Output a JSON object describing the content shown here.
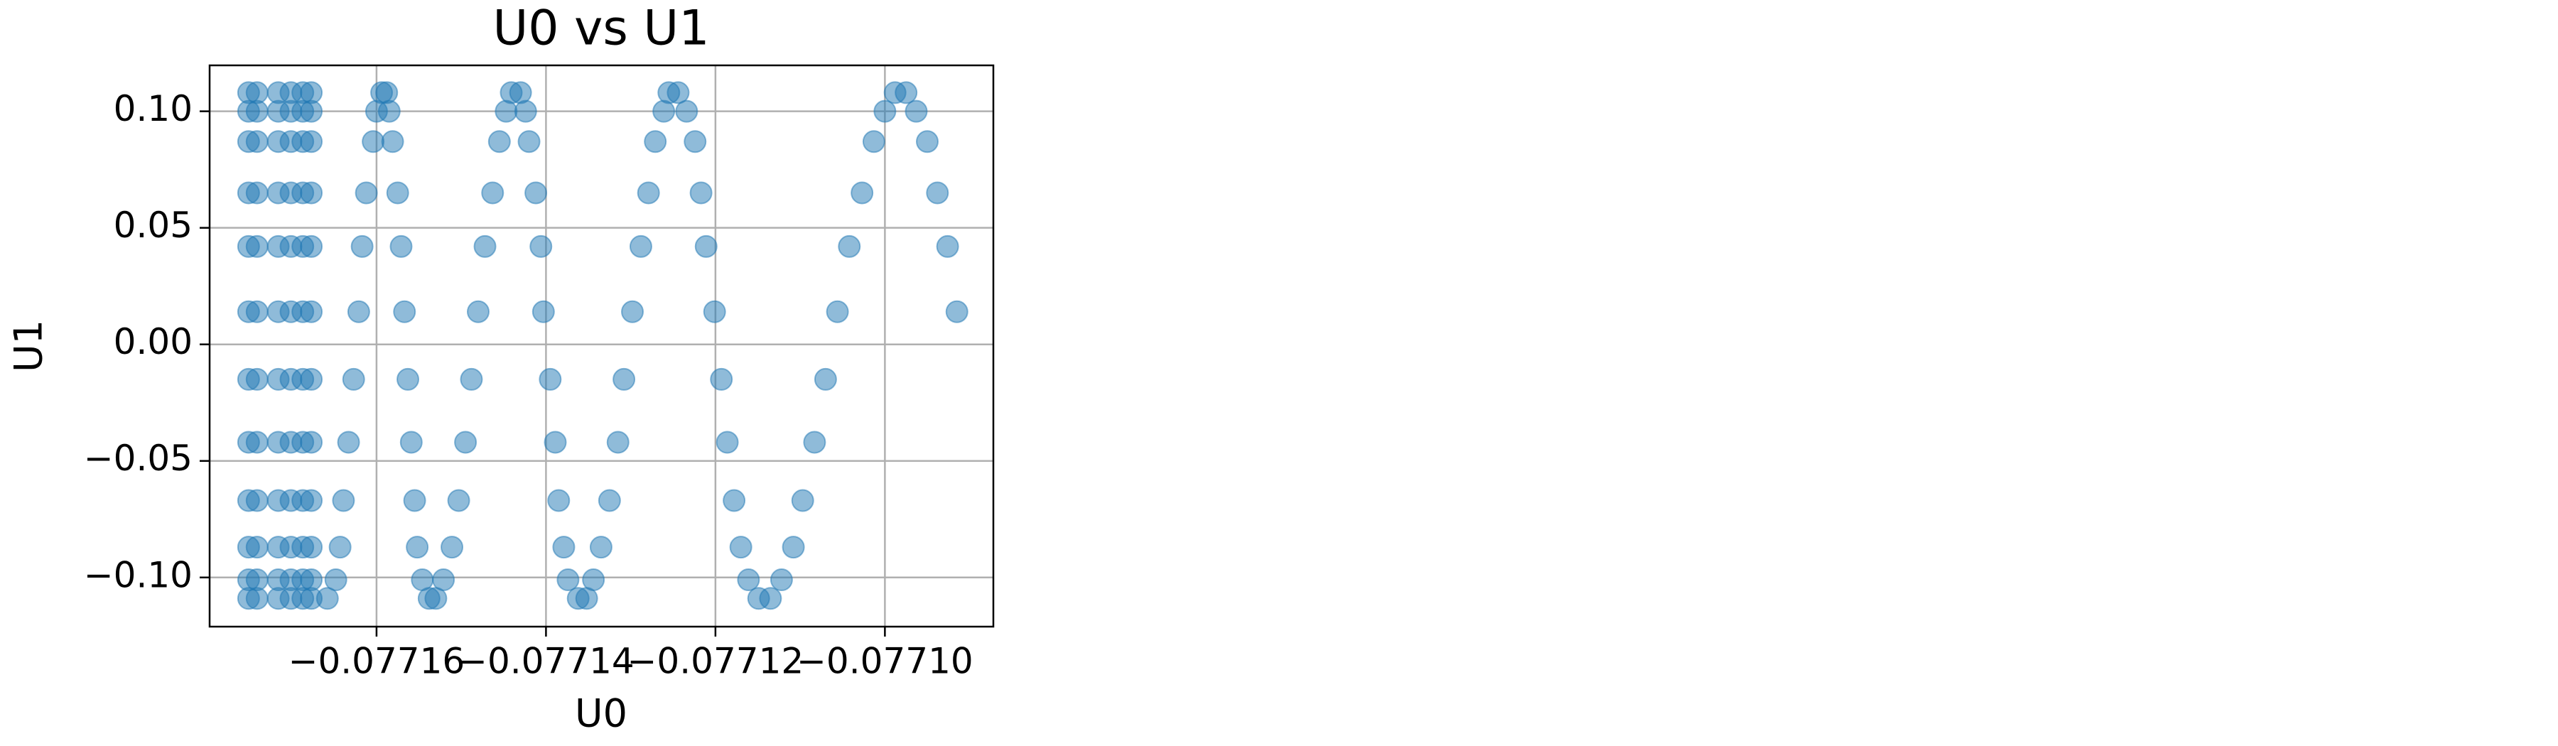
{
  "chart_data": {
    "type": "scatter",
    "title": "U0 vs U1",
    "x_label": "U0",
    "y_label": "U1",
    "color": "#1f77b4",
    "grid": true,
    "xlim": [
      -0.0771797,
      -0.0770872
    ],
    "ylim": [
      -0.1211,
      0.1197
    ],
    "xticks": [
      {
        "value": -0.07716,
        "label": "−0.07716"
      },
      {
        "value": -0.07714,
        "label": "−0.07714"
      },
      {
        "value": -0.07712,
        "label": "−0.07712"
      },
      {
        "value": -0.0771,
        "label": "−0.07710"
      }
    ],
    "yticks": [
      {
        "value": -0.1,
        "label": "−0.10"
      },
      {
        "value": -0.05,
        "label": "−0.05"
      },
      {
        "value": 0,
        "label": "0.00"
      },
      {
        "value": 0.05,
        "label": "0.05"
      },
      {
        "value": 0.1,
        "label": "0.10"
      }
    ],
    "x": [
      -0.0771751,
      -0.0771741,
      -0.0771716,
      -0.0771701,
      -0.0771687,
      -0.0771677,
      -0.0771751,
      -0.0771741,
      -0.0771716,
      -0.0771701,
      -0.0771687,
      -0.0771677,
      -0.0771751,
      -0.0771741,
      -0.0771716,
      -0.0771701,
      -0.0771687,
      -0.0771677,
      -0.0771751,
      -0.0771741,
      -0.0771716,
      -0.0771701,
      -0.0771687,
      -0.0771677,
      -0.0771751,
      -0.0771741,
      -0.0771716,
      -0.0771701,
      -0.0771687,
      -0.0771677,
      -0.0771751,
      -0.0771741,
      -0.0771716,
      -0.0771701,
      -0.0771687,
      -0.0771677,
      -0.0771751,
      -0.0771741,
      -0.0771716,
      -0.0771701,
      -0.0771687,
      -0.0771677,
      -0.0771751,
      -0.0771741,
      -0.0771716,
      -0.0771701,
      -0.0771687,
      -0.0771677,
      -0.0771751,
      -0.0771741,
      -0.0771716,
      -0.0771701,
      -0.0771687,
      -0.0771677,
      -0.0771751,
      -0.0771741,
      -0.0771716,
      -0.0771701,
      -0.0771687,
      -0.0771677,
      -0.0771751,
      -0.0771741,
      -0.0771716,
      -0.0771701,
      -0.0771687,
      -0.0771677,
      -0.0771751,
      -0.0771741,
      -0.0771716,
      -0.0771701,
      -0.0771687,
      -0.0771677,
      -0.0771594,
      -0.07716,
      -0.0771604,
      -0.0771612,
      -0.0771617,
      -0.0771621,
      -0.0771627,
      -0.0771633,
      -0.0771639,
      -0.0771643,
      -0.0771648,
      -0.0771658,
      -0.0771588,
      -0.0771585,
      -0.0771581,
      -0.0771575,
      -0.0771571,
      -0.0771567,
      -0.0771563,
      -0.0771559,
      -0.0771555,
      -0.0771552,
      -0.0771546,
      -0.0771538,
      -0.0771441,
      -0.0771447,
      -0.0771455,
      -0.0771463,
      -0.0771472,
      -0.077148,
      -0.0771488,
      -0.0771495,
      -0.0771503,
      -0.0771511,
      -0.0771521,
      -0.077153,
      -0.077143,
      -0.0771424,
      -0.077142,
      -0.0771412,
      -0.0771406,
      -0.0771403,
      -0.0771395,
      -0.0771389,
      -0.0771385,
      -0.0771379,
      -0.0771374,
      -0.0771362,
      -0.0771255,
      -0.0771261,
      -0.0771271,
      -0.0771279,
      -0.0771288,
      -0.0771298,
      -0.0771308,
      -0.0771315,
      -0.0771325,
      -0.0771335,
      -0.0771344,
      -0.0771352,
      -0.0771244,
      -0.0771234,
      -0.0771224,
      -0.0771217,
      -0.0771211,
      -0.0771201,
      -0.0771193,
      -0.0771186,
      -0.0771178,
      -0.077117,
      -0.0771161,
      -0.0771149,
      -0.0770988,
      -0.0771,
      -0.0771013,
      -0.0771027,
      -0.0771042,
      -0.0771056,
      -0.077107,
      -0.0771083,
      -0.0771097,
      -0.0771108,
      -0.0771122,
      -0.0771135,
      -0.0770975,
      -0.0770963,
      -0.077095,
      -0.0770938,
      -0.0770926,
      -0.0770915
    ],
    "values": [
      0.108,
      0.108,
      0.108,
      0.108,
      0.108,
      0.108,
      0.1,
      0.1,
      0.1,
      0.1,
      0.1,
      0.1,
      0.087,
      0.087,
      0.087,
      0.087,
      0.087,
      0.087,
      0.065,
      0.065,
      0.065,
      0.065,
      0.065,
      0.065,
      0.042,
      0.042,
      0.042,
      0.042,
      0.042,
      0.042,
      0.014,
      0.014,
      0.014,
      0.014,
      0.014,
      0.014,
      -0.015,
      -0.015,
      -0.015,
      -0.015,
      -0.015,
      -0.015,
      -0.042,
      -0.042,
      -0.042,
      -0.042,
      -0.042,
      -0.042,
      -0.067,
      -0.067,
      -0.067,
      -0.067,
      -0.067,
      -0.067,
      -0.087,
      -0.087,
      -0.087,
      -0.087,
      -0.087,
      -0.087,
      -0.101,
      -0.101,
      -0.101,
      -0.101,
      -0.101,
      -0.101,
      -0.109,
      -0.109,
      -0.109,
      -0.109,
      -0.109,
      -0.109,
      0.108,
      0.1,
      0.087,
      0.065,
      0.042,
      0.014,
      -0.015,
      -0.042,
      -0.067,
      -0.087,
      -0.101,
      -0.109,
      0.108,
      0.1,
      0.087,
      0.065,
      0.042,
      0.014,
      -0.015,
      -0.042,
      -0.067,
      -0.087,
      -0.101,
      -0.109,
      0.108,
      0.1,
      0.087,
      0.065,
      0.042,
      0.014,
      -0.015,
      -0.042,
      -0.067,
      -0.087,
      -0.101,
      -0.109,
      0.108,
      0.1,
      0.087,
      0.065,
      0.042,
      0.014,
      -0.015,
      -0.042,
      -0.067,
      -0.087,
      -0.101,
      -0.109,
      0.108,
      0.1,
      0.087,
      0.065,
      0.042,
      0.014,
      -0.015,
      -0.042,
      -0.067,
      -0.087,
      -0.101,
      -0.109,
      0.108,
      0.1,
      0.087,
      0.065,
      0.042,
      0.014,
      -0.015,
      -0.042,
      -0.067,
      -0.087,
      -0.101,
      -0.109,
      0.108,
      0.1,
      0.087,
      0.065,
      0.042,
      0.014,
      -0.015,
      -0.042,
      -0.067,
      -0.087,
      -0.101,
      -0.109,
      0.108,
      0.1,
      0.087,
      0.065,
      0.042,
      0.014
    ]
  }
}
